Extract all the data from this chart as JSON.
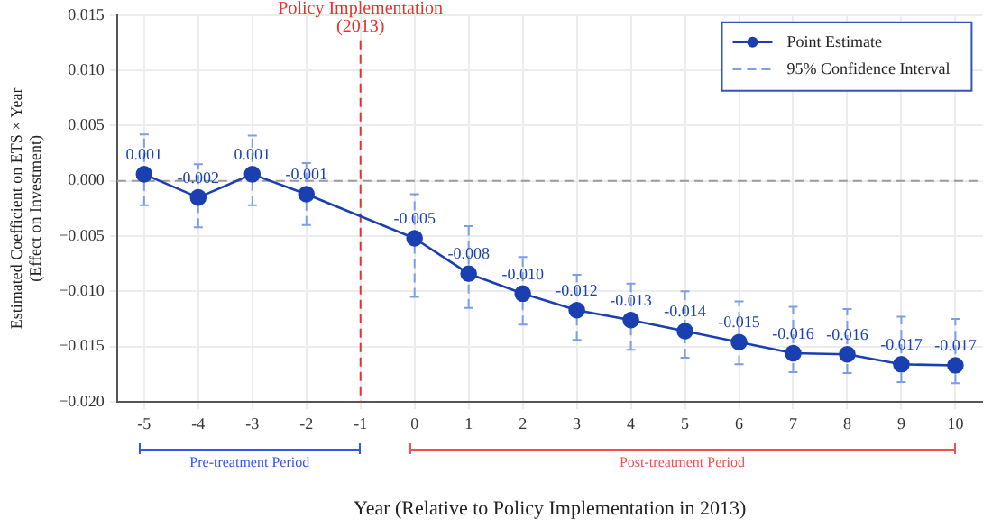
{
  "chart_data": {
    "type": "line",
    "xlabel": "Year (Relative to Policy Implementation in 2013)",
    "ylabel": "Estimated Coefficient on ETS × Year\n(Effect on Investment)",
    "xlim": [
      -5.5,
      10.5
    ],
    "xticks": [
      -5,
      -4,
      -3,
      -2,
      -1,
      0,
      1,
      2,
      3,
      4,
      5,
      6,
      7,
      8,
      9,
      10
    ],
    "ylim": [
      -0.02,
      0.015
    ],
    "yticks": [
      {
        "value": -0.02,
        "label": "−0.020"
      },
      {
        "value": -0.015,
        "label": "−0.015"
      },
      {
        "value": -0.01,
        "label": "−0.010"
      },
      {
        "value": -0.005,
        "label": "−0.005"
      },
      {
        "value": 0,
        "label": "0.000"
      },
      {
        "value": 0.005,
        "label": "0.005"
      },
      {
        "value": 0.01,
        "label": "0.010"
      },
      {
        "value": 0.015,
        "label": "0.015"
      }
    ],
    "grid": true,
    "legend": "top right",
    "marker": "circle",
    "series": [
      {
        "name": "Point Estimate",
        "color": "#1a3fb0",
        "line_style": "solid",
        "x": [
          -5,
          -4,
          -3,
          -2,
          0,
          1,
          2,
          3,
          4,
          5,
          6,
          7,
          8,
          9,
          10
        ],
        "values": [
          0.0006,
          -0.0015,
          0.0006,
          -0.0012,
          -0.0052,
          -0.0084,
          -0.0102,
          -0.0117,
          -0.0126,
          -0.0136,
          -0.0146,
          -0.0156,
          -0.0157,
          -0.0166,
          -0.0167
        ],
        "value_labels": [
          "0.001",
          "-0.002",
          "0.001",
          "-0.001",
          "-0.005",
          "-0.008",
          "-0.010",
          "-0.012",
          "-0.013",
          "-0.014",
          "-0.015",
          "-0.016",
          "-0.016",
          "-0.017",
          "-0.017"
        ],
        "errors": [
          [
            -0.0022,
            0.0042
          ],
          [
            -0.0042,
            0.0015
          ],
          [
            -0.0022,
            0.0041
          ],
          [
            -0.004,
            0.0016
          ],
          [
            -0.0105,
            -0.0012
          ],
          [
            -0.0115,
            -0.0041
          ],
          [
            -0.013,
            -0.0069
          ],
          [
            -0.0144,
            -0.0085
          ],
          [
            -0.0153,
            -0.0093
          ],
          [
            -0.016,
            -0.01
          ],
          [
            -0.0166,
            -0.0109
          ],
          [
            -0.0173,
            -0.0114
          ],
          [
            -0.0174,
            -0.0116
          ],
          [
            -0.0182,
            -0.0123
          ],
          [
            -0.0183,
            -0.0125
          ]
        ]
      },
      {
        "name": "95% Confidence Interval",
        "color": "#7a9fe6",
        "line_style": "dashed",
        "marker": "none"
      }
    ],
    "ref_lines": [
      {
        "axis": "x",
        "value": -1,
        "label": "Policy Implementation\n(2013)",
        "color": "#e8312f",
        "line_style": "dashed"
      },
      {
        "axis": "y",
        "value": 0,
        "color": "#9a9a9a",
        "line_style": "dashed"
      }
    ],
    "annotations": [
      "Pre-treatment Period",
      "Post-treatment Period"
    ]
  }
}
